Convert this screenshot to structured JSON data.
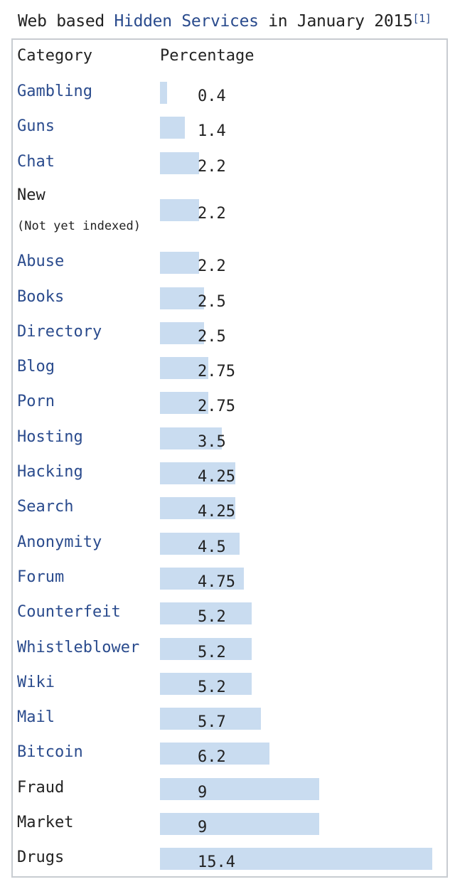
{
  "caption": {
    "prefix": "Web based ",
    "link": "Hidden Services",
    "suffix": " in January 2015",
    "ref": "[1]"
  },
  "colors": {
    "bar": "#c9dcf0",
    "link": "#2a4b8d",
    "text": "#222222",
    "border": "#c8ccd1"
  },
  "chart_data": {
    "type": "bar",
    "orientation": "horizontal",
    "title": "Web based Hidden Services in January 2015",
    "columns": [
      "Category",
      "Percentage"
    ],
    "categories": [
      "Gambling",
      "Guns",
      "Chat",
      "New (Not yet indexed)",
      "Abuse",
      "Books",
      "Directory",
      "Blog",
      "Porn",
      "Hosting",
      "Hacking",
      "Search",
      "Anonymity",
      "Forum",
      "Counterfeit",
      "Whistleblower",
      "Wiki",
      "Mail",
      "Bitcoin",
      "Fraud",
      "Market",
      "Drugs"
    ],
    "rows": [
      {
        "category": "Gambling",
        "value": 0.4,
        "label": "0.4",
        "linked": true
      },
      {
        "category": "Guns",
        "value": 1.4,
        "label": "1.4",
        "linked": true
      },
      {
        "category": "Chat",
        "value": 2.2,
        "label": "2.2",
        "linked": true
      },
      {
        "category": "New",
        "subtext": "(Not yet indexed)",
        "value": 2.2,
        "label": "2.2",
        "linked": false
      },
      {
        "category": "Abuse",
        "value": 2.2,
        "label": "2.2",
        "linked": true
      },
      {
        "category": "Books",
        "value": 2.5,
        "label": "2.5",
        "linked": true
      },
      {
        "category": "Directory",
        "value": 2.5,
        "label": "2.5",
        "linked": true
      },
      {
        "category": "Blog",
        "value": 2.75,
        "label": "2.75",
        "linked": true
      },
      {
        "category": "Porn",
        "value": 2.75,
        "label": "2.75",
        "linked": true
      },
      {
        "category": "Hosting",
        "value": 3.5,
        "label": "3.5",
        "linked": true
      },
      {
        "category": "Hacking",
        "value": 4.25,
        "label": "4.25",
        "linked": true
      },
      {
        "category": "Search",
        "value": 4.25,
        "label": "4.25",
        "linked": true
      },
      {
        "category": "Anonymity",
        "value": 4.5,
        "label": "4.5",
        "linked": true
      },
      {
        "category": "Forum",
        "value": 4.75,
        "label": "4.75",
        "linked": true
      },
      {
        "category": "Counterfeit",
        "value": 5.2,
        "label": "5.2",
        "linked": true
      },
      {
        "category": "Whistleblower",
        "value": 5.2,
        "label": "5.2",
        "linked": true
      },
      {
        "category": "Wiki",
        "value": 5.2,
        "label": "5.2",
        "linked": true
      },
      {
        "category": "Mail",
        "value": 5.7,
        "label": "5.7",
        "linked": true
      },
      {
        "category": "Bitcoin",
        "value": 6.2,
        "label": "6.2",
        "linked": true
      },
      {
        "category": "Fraud",
        "value": 9,
        "label": "9",
        "linked": false
      },
      {
        "category": "Market",
        "value": 9,
        "label": "9",
        "linked": false
      },
      {
        "category": "Drugs",
        "value": 15.4,
        "label": "15.4",
        "linked": false
      }
    ],
    "xlim": [
      0,
      15.4
    ]
  }
}
